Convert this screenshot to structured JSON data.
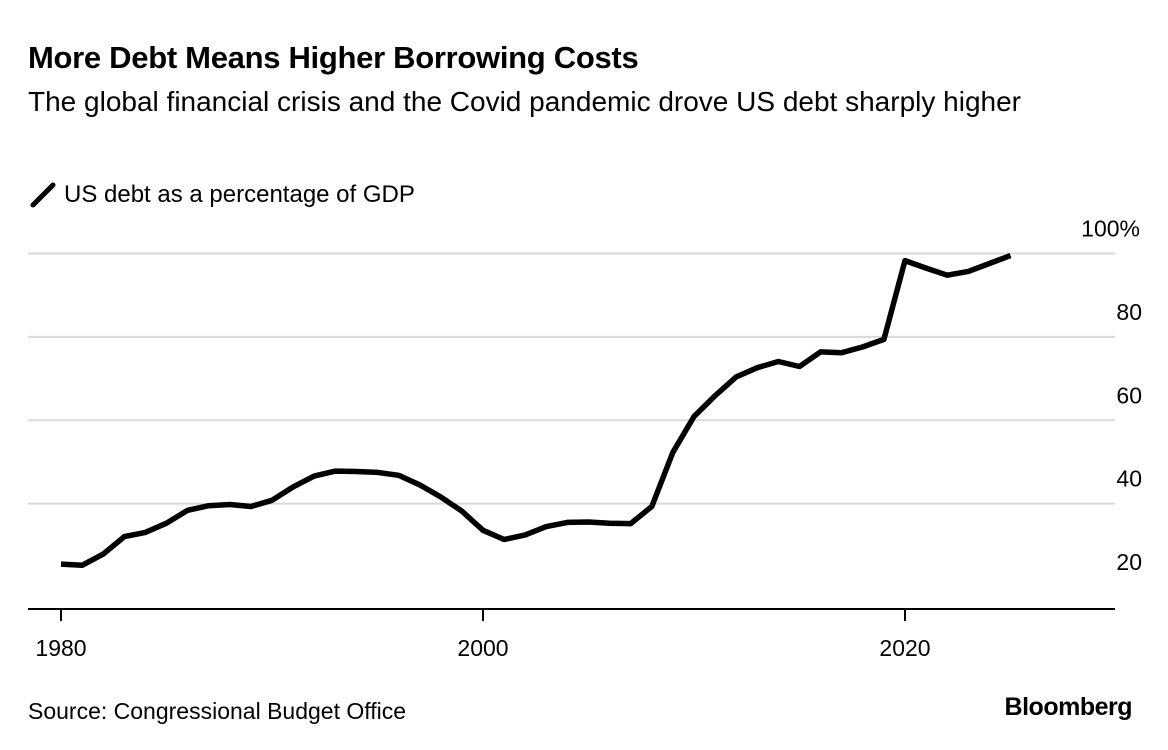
{
  "header": {
    "title": "More Debt Means Higher Borrowing Costs",
    "subtitle": "The global financial crisis and the Covid pandemic drove US debt sharply higher"
  },
  "legend": {
    "label": "US debt as a percentage of GDP",
    "icon": "line-segment-icon"
  },
  "footer": {
    "source": "Source: Congressional Budget Office",
    "brand": "Bloomberg"
  },
  "colors": {
    "series": "#000000",
    "grid": "#d9d9d9",
    "axis": "#000000",
    "text": "#000000"
  },
  "chart_data": {
    "type": "line",
    "title": "More Debt Means Higher Borrowing Costs",
    "subtitle": "The global financial crisis and the Covid pandemic drove US debt sharply higher",
    "xlabel": "",
    "ylabel": "",
    "xlim": [
      1978.5,
      2031
    ],
    "ylim": [
      15,
      100
    ],
    "x_ticks": [
      1980,
      2000,
      2020
    ],
    "x_tick_labels": [
      "1980",
      "2000",
      "2020"
    ],
    "y_ticks": [
      20,
      40,
      60,
      80,
      100
    ],
    "y_tick_labels": [
      "20",
      "40",
      "60",
      "80",
      "100%"
    ],
    "y_axis_side": "right",
    "grid": true,
    "legend_position": "top-left",
    "series": [
      {
        "name": "US debt as a percentage of GDP",
        "color": "#000000",
        "x": [
          1980,
          1981,
          1982,
          1983,
          1984,
          1985,
          1986,
          1987,
          1988,
          1989,
          1990,
          1991,
          1992,
          1993,
          1994,
          1995,
          1996,
          1997,
          1998,
          1999,
          2000,
          2001,
          2002,
          2003,
          2004,
          2005,
          2006,
          2007,
          2008,
          2009,
          2010,
          2011,
          2012,
          2013,
          2014,
          2015,
          2016,
          2017,
          2018,
          2019,
          2020,
          2021,
          2022,
          2023,
          2024,
          2025
        ],
        "values": [
          25.5,
          25.2,
          27.9,
          32.1,
          33.1,
          35.3,
          38.4,
          39.5,
          39.8,
          39.3,
          40.8,
          44.0,
          46.6,
          47.8,
          47.7,
          47.5,
          46.8,
          44.5,
          41.6,
          38.2,
          33.6,
          31.4,
          32.5,
          34.5,
          35.5,
          35.6,
          35.3,
          35.2,
          39.3,
          52.3,
          60.9,
          65.9,
          70.4,
          72.6,
          74.1,
          72.9,
          76.4,
          76.2,
          77.6,
          79.4,
          98.3,
          96.5,
          94.8,
          95.7,
          97.6,
          99.5
        ]
      }
    ]
  }
}
